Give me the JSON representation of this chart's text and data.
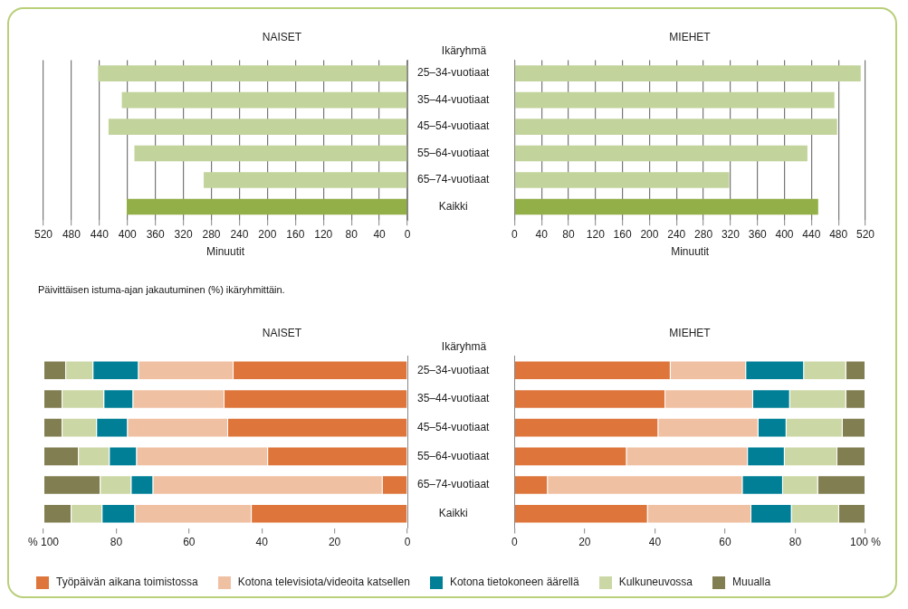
{
  "chart_data": [
    {
      "type": "bar",
      "orientation": "horizontal",
      "title": "NAISET",
      "ylabel": "Ikäryhmä",
      "xlabel": "Minuutit",
      "categories": [
        "25–34-vuotiaat",
        "35–44-vuotiaat",
        "45–54-vuotiaat",
        "55–64-vuotiaat",
        "65–74-vuotiaat",
        "Kaikki"
      ],
      "values": [
        442,
        408,
        427,
        390,
        291,
        401
      ],
      "colors": [
        "#c2d39b",
        "#c2d39b",
        "#c2d39b",
        "#c2d39b",
        "#c2d39b",
        "#93b048"
      ],
      "xlim": [
        520,
        0
      ],
      "xticks": [
        520,
        480,
        440,
        400,
        360,
        320,
        280,
        240,
        200,
        160,
        120,
        80,
        40,
        0
      ],
      "grid": "x"
    },
    {
      "type": "bar",
      "orientation": "horizontal",
      "title": "MIEHET",
      "xlabel": "Minuutit",
      "categories": [
        null,
        null,
        null,
        null,
        null,
        null
      ],
      "values": [
        513,
        474,
        478,
        434,
        318,
        450
      ],
      "colors": [
        "#c2d39b",
        "#c2d39b",
        "#c2d39b",
        "#c2d39b",
        "#c2d39b",
        "#93b048"
      ],
      "xlim": [
        0,
        520
      ],
      "xticks": [
        0,
        40,
        80,
        120,
        160,
        200,
        240,
        280,
        320,
        360,
        400,
        440,
        480,
        520
      ],
      "grid": "x",
      "tick_labels": "x"
    },
    {
      "type": "bar",
      "orientation": "horizontal",
      "stacked": true,
      "title": "NAISET",
      "subtitle": "Päivittäisen istuma-ajan jakautuminen (%) ikäryhmittäin.",
      "ylabel": "Ikäryhmä",
      "categories": [
        "25–34-vuotiaat",
        "35–44-vuotiaat",
        "45–54-vuotiaat",
        "55–64-vuotiaat",
        "65–74-vuotiaat",
        "Kaikki"
      ],
      "xlim": [
        100,
        0
      ],
      "xticks": [
        {
          "value": 100,
          "label": "% 100"
        },
        80,
        60,
        40,
        20,
        0
      ],
      "legend": "bottom",
      "series": [
        {
          "name": "Työpäivän aikana toimistossa",
          "color": "#de763c",
          "values": [
            48,
            50.5,
            49.5,
            38.5,
            7,
            43
          ]
        },
        {
          "name": "Kotona televisiota/videoita katsellen",
          "color": "#f0c0a2",
          "values": [
            26,
            25,
            27.5,
            36,
            63,
            32
          ]
        },
        {
          "name": "Kotona tietokoneen äärellä",
          "color": "#007f96",
          "values": [
            12.5,
            8,
            8.5,
            7.5,
            6,
            9
          ]
        },
        {
          "name": "Kulkuneuvossa",
          "color": "#ccd7a6",
          "values": [
            7.5,
            11.5,
            9.5,
            8.5,
            8.5,
            8.5
          ]
        },
        {
          "name": "Muualla",
          "color": "#817e51",
          "values": [
            6,
            5,
            5,
            9.5,
            15.5,
            7.5
          ]
        }
      ]
    },
    {
      "type": "bar",
      "orientation": "horizontal",
      "stacked": true,
      "title": "MIEHET",
      "categories": [
        null,
        null,
        null,
        null,
        null,
        null
      ],
      "xlim": [
        0,
        100
      ],
      "xticks": [
        0,
        20,
        40,
        60,
        80,
        {
          "value": 100,
          "label": "100 %"
        }
      ],
      "tick_labels": "x",
      "series": [
        {
          "color": "#de763c",
          "values": [
            44.5,
            43,
            41,
            32,
            9.5,
            38
          ]
        },
        {
          "color": "#f0c0a2",
          "values": [
            21.5,
            25,
            28.5,
            34.5,
            55.5,
            29.5
          ]
        },
        {
          "color": "#007f96",
          "values": [
            16.5,
            10.5,
            8,
            10.5,
            11.5,
            11.5
          ]
        },
        {
          "color": "#ccd7a6",
          "values": [
            12,
            16,
            16,
            15,
            10,
            13.5
          ]
        },
        {
          "color": "#817e51",
          "values": [
            5.5,
            5.5,
            6.5,
            8,
            13.5,
            7.5
          ]
        }
      ]
    }
  ]
}
